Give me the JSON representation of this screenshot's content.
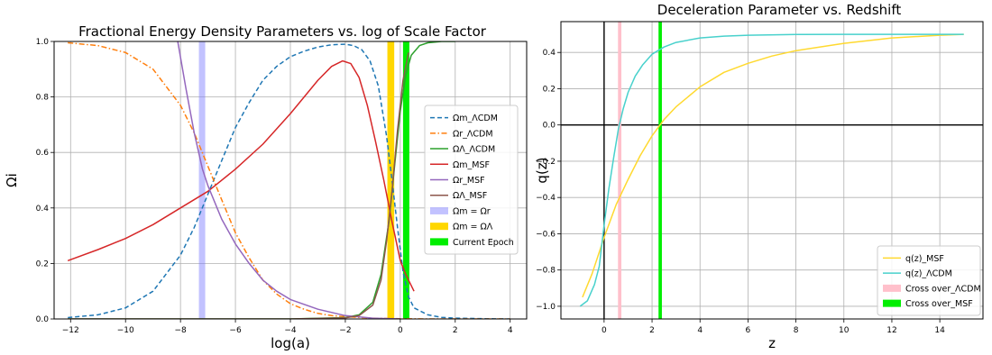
{
  "chart_data": [
    {
      "type": "line",
      "title": "Fractional Energy Density Parameters vs. log of Scale Factor",
      "xlabel": "log(a)",
      "ylabel": "Ωi",
      "xlim": [
        -12.6,
        4.6
      ],
      "ylim": [
        0,
        1
      ],
      "xticks": [
        -12,
        -10,
        -8,
        -6,
        -4,
        -2,
        0,
        2,
        4
      ],
      "yticks": [
        0.0,
        0.2,
        0.4,
        0.6,
        0.8,
        1.0
      ],
      "xtick_labels": [
        "−12",
        "−10",
        "−8",
        "−6",
        "−4",
        "−2",
        "0",
        "2",
        "4"
      ],
      "ytick_labels": [
        "0.0",
        "0.2",
        "0.4",
        "0.6",
        "0.8",
        "1.0"
      ],
      "grid": true,
      "legend_position": "center-right",
      "series": [
        {
          "name": "Ωm_ΛCDM",
          "color": "#1f77b4",
          "style": "dashed",
          "x": [
            -12.1,
            -11,
            -10,
            -9,
            -8,
            -7.5,
            -7,
            -6.5,
            -6,
            -5.5,
            -5,
            -4.5,
            -4,
            -3.5,
            -3,
            -2.5,
            -2,
            -1.7,
            -1.4,
            -1.1,
            -0.8,
            -0.5,
            -0.3,
            -0.1,
            0.1,
            0.3,
            0.5,
            1,
            1.5,
            2,
            3,
            4
          ],
          "y": [
            0.005,
            0.015,
            0.04,
            0.1,
            0.23,
            0.33,
            0.45,
            0.57,
            0.69,
            0.78,
            0.86,
            0.91,
            0.945,
            0.965,
            0.98,
            0.988,
            0.99,
            0.985,
            0.97,
            0.93,
            0.84,
            0.66,
            0.5,
            0.33,
            0.17,
            0.08,
            0.04,
            0.015,
            0.006,
            0.003,
            0.001,
            0.0
          ]
        },
        {
          "name": "Ωr_ΛCDM",
          "color": "#ff7f0e",
          "style": "dashdot",
          "x": [
            -12.1,
            -11,
            -10,
            -9,
            -8,
            -7.5,
            -7,
            -6.5,
            -6,
            -5.5,
            -5,
            -4.5,
            -4,
            -3.5,
            -3,
            -2.5,
            -2,
            -1,
            0,
            1,
            2,
            4
          ],
          "y": [
            0.995,
            0.985,
            0.96,
            0.9,
            0.77,
            0.67,
            0.55,
            0.43,
            0.31,
            0.22,
            0.14,
            0.09,
            0.055,
            0.035,
            0.02,
            0.012,
            0.008,
            0.003,
            0.001,
            0.0,
            0.0,
            0.0
          ]
        },
        {
          "name": "ΩΛ_ΛCDM",
          "color": "#2ca02c",
          "style": "solid",
          "x": [
            -12.1,
            -4,
            -2,
            -1.5,
            -1,
            -0.7,
            -0.4,
            -0.2,
            0.0,
            0.2,
            0.4,
            0.7,
            1.0,
            1.5,
            2.0
          ],
          "y": [
            0.0,
            0.0,
            0.005,
            0.015,
            0.06,
            0.16,
            0.36,
            0.56,
            0.75,
            0.88,
            0.95,
            0.985,
            0.995,
            1.0,
            1.0
          ]
        },
        {
          "name": "Ωm_MSF",
          "color": "#d62728",
          "style": "solid",
          "x": [
            -12.1,
            -11,
            -10,
            -9,
            -8,
            -7,
            -6,
            -5,
            -4,
            -3,
            -2.5,
            -2.1,
            -1.8,
            -1.5,
            -1.2,
            -0.9,
            -0.6,
            -0.3,
            0.0,
            0.2,
            0.5
          ],
          "y": [
            0.21,
            0.25,
            0.29,
            0.34,
            0.4,
            0.46,
            0.54,
            0.63,
            0.74,
            0.86,
            0.91,
            0.93,
            0.92,
            0.87,
            0.77,
            0.64,
            0.5,
            0.35,
            0.21,
            0.16,
            0.1
          ]
        },
        {
          "name": "Ωr_MSF",
          "color": "#9467bd",
          "style": "solid",
          "x": [
            -8.1,
            -7.8,
            -7.5,
            -7.2,
            -7.0,
            -6.5,
            -6.0,
            -5.5,
            -5.0,
            -4.5,
            -4.0,
            -3.0,
            -2.0,
            -1.0,
            0.0
          ],
          "y": [
            1.0,
            0.83,
            0.67,
            0.54,
            0.48,
            0.36,
            0.27,
            0.2,
            0.14,
            0.1,
            0.07,
            0.035,
            0.012,
            0.003,
            0.0
          ]
        },
        {
          "name": "ΩΛ_MSF",
          "color": "#8c564b",
          "style": "solid",
          "x": [
            -12.1,
            -4,
            -2,
            -1.5,
            -1,
            -0.7,
            -0.5,
            -0.3,
            -0.1,
            0.1,
            0.3
          ],
          "y": [
            0.0,
            0.0,
            0.004,
            0.012,
            0.05,
            0.14,
            0.28,
            0.46,
            0.68,
            0.86,
            0.96
          ]
        }
      ],
      "bands": [
        {
          "name": "Ωm = Ωr",
          "color": "#7777ff",
          "opacity": 0.45,
          "x0": -7.33,
          "x1": -7.1
        },
        {
          "name": "Ωm = ΩΛ",
          "color": "#ffd700",
          "opacity": 1,
          "x0": -0.47,
          "x1": -0.22
        },
        {
          "name": "Current Epoch",
          "color": "#00ee00",
          "opacity": 1,
          "x0": 0.1,
          "x1": 0.33
        }
      ]
    },
    {
      "type": "line",
      "title": "Deceleration Parameter vs. Redshift",
      "xlabel": "z",
      "ylabel": "q(z)",
      "xlim": [
        -1.8,
        15.8
      ],
      "ylim": [
        -1.07,
        0.57
      ],
      "xticks": [
        0,
        2,
        4,
        6,
        8,
        10,
        12,
        14
      ],
      "yticks": [
        -1.0,
        -0.8,
        -0.6,
        -0.4,
        -0.2,
        0.0,
        0.2,
        0.4
      ],
      "xtick_labels": [
        "0",
        "2",
        "4",
        "6",
        "8",
        "10",
        "12",
        "14"
      ],
      "ytick_labels": [
        "−1.0",
        "−0.8",
        "−0.6",
        "−0.4",
        "−0.2",
        "0.0",
        "0.2",
        "0.4"
      ],
      "grid": true,
      "legend_position": "lower-right",
      "series": [
        {
          "name": "q(z)_MSF",
          "color": "#ffd92f",
          "style": "solid",
          "x": [
            -0.9,
            -0.5,
            0,
            0.5,
            1,
            1.5,
            2,
            2.5,
            3,
            4,
            5,
            6,
            7,
            8,
            10,
            12,
            14,
            15
          ],
          "y": [
            -0.95,
            -0.82,
            -0.62,
            -0.44,
            -0.3,
            -0.17,
            -0.06,
            0.03,
            0.1,
            0.21,
            0.29,
            0.34,
            0.38,
            0.41,
            0.45,
            0.48,
            0.495,
            0.5
          ]
        },
        {
          "name": "q(z)_ΛCDM",
          "color": "#48d1cc",
          "style": "solid",
          "x": [
            -1.0,
            -0.7,
            -0.4,
            -0.2,
            0,
            0.2,
            0.4,
            0.6,
            0.8,
            1.0,
            1.3,
            1.6,
            2.0,
            2.5,
            3.0,
            4.0,
            5.0,
            6.0,
            8.0,
            10.0,
            15.0
          ],
          "y": [
            -1.0,
            -0.97,
            -0.88,
            -0.78,
            -0.55,
            -0.35,
            -0.18,
            -0.02,
            0.09,
            0.18,
            0.27,
            0.33,
            0.39,
            0.43,
            0.455,
            0.48,
            0.49,
            0.495,
            0.499,
            0.5,
            0.5
          ]
        }
      ],
      "bands": [
        {
          "name": "Cross over_ΛCDM",
          "color": "#ffc0cb",
          "opacity": 1,
          "x0": 0.58,
          "x1": 0.72
        },
        {
          "name": "Cross over_MSF",
          "color": "#00ee00",
          "opacity": 1,
          "x0": 2.27,
          "x1": 2.41
        }
      ]
    }
  ]
}
